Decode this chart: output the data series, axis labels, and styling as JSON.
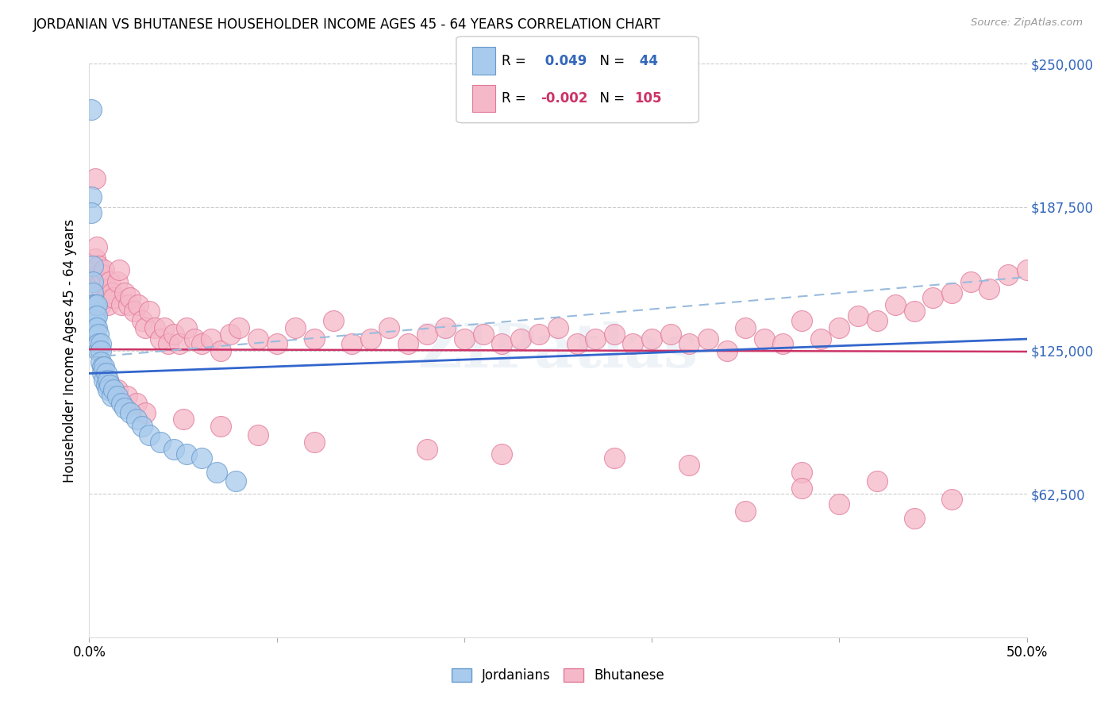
{
  "title": "JORDANIAN VS BHUTANESE HOUSEHOLDER INCOME AGES 45 - 64 YEARS CORRELATION CHART",
  "source": "Source: ZipAtlas.com",
  "ylabel": "Householder Income Ages 45 - 64 years",
  "xlim": [
    0.0,
    0.5
  ],
  "ylim": [
    0,
    250000
  ],
  "yticks": [
    0,
    62500,
    125000,
    187500,
    250000
  ],
  "ytick_labels": [
    "",
    "$62,500",
    "$125,000",
    "$187,500",
    "$250,000"
  ],
  "xticks": [
    0.0,
    0.1,
    0.2,
    0.3,
    0.4,
    0.5
  ],
  "xtick_labels": [
    "0.0%",
    "",
    "",
    "",
    "",
    "50.0%"
  ],
  "jordanian_R": 0.049,
  "jordanian_N": 44,
  "bhutanese_R": -0.002,
  "bhutanese_N": 105,
  "blue_fill": "#A8CAEC",
  "blue_edge": "#6699CC",
  "pink_fill": "#F5B8C8",
  "pink_edge": "#E07898",
  "trend_blue": "#3366CC",
  "trend_pink": "#CC3366",
  "trend_dashed_color": "#99BBDD",
  "watermark": "ZIPatlas",
  "legend_blue_R_color": "#3366BB",
  "legend_pink_R_color": "#CC3366",
  "jx": [
    0.001,
    0.001,
    0.001,
    0.002,
    0.002,
    0.002,
    0.002,
    0.003,
    0.003,
    0.003,
    0.003,
    0.004,
    0.004,
    0.004,
    0.005,
    0.005,
    0.005,
    0.006,
    0.006,
    0.006,
    0.007,
    0.007,
    0.008,
    0.008,
    0.009,
    0.009,
    0.01,
    0.01,
    0.011,
    0.012,
    0.013,
    0.015,
    0.017,
    0.019,
    0.022,
    0.025,
    0.028,
    0.032,
    0.038,
    0.045,
    0.052,
    0.06,
    0.068,
    0.078
  ],
  "jy": [
    230000,
    192000,
    185000,
    162000,
    155000,
    150000,
    145000,
    145000,
    140000,
    138000,
    135000,
    145000,
    140000,
    135000,
    132000,
    128000,
    125000,
    128000,
    125000,
    120000,
    118000,
    115000,
    118000,
    112000,
    115000,
    110000,
    112000,
    108000,
    110000,
    105000,
    108000,
    105000,
    102000,
    100000,
    98000,
    95000,
    92000,
    88000,
    85000,
    82000,
    80000,
    78000,
    72000,
    68000
  ],
  "bx": [
    0.001,
    0.002,
    0.003,
    0.003,
    0.004,
    0.004,
    0.005,
    0.005,
    0.006,
    0.006,
    0.007,
    0.007,
    0.008,
    0.009,
    0.01,
    0.01,
    0.011,
    0.012,
    0.013,
    0.015,
    0.016,
    0.017,
    0.019,
    0.021,
    0.022,
    0.024,
    0.026,
    0.028,
    0.03,
    0.032,
    0.035,
    0.038,
    0.04,
    0.042,
    0.045,
    0.048,
    0.052,
    0.056,
    0.06,
    0.065,
    0.07,
    0.075,
    0.08,
    0.09,
    0.1,
    0.11,
    0.12,
    0.13,
    0.14,
    0.15,
    0.16,
    0.17,
    0.18,
    0.19,
    0.2,
    0.21,
    0.22,
    0.23,
    0.24,
    0.25,
    0.26,
    0.27,
    0.28,
    0.29,
    0.3,
    0.31,
    0.32,
    0.33,
    0.34,
    0.35,
    0.36,
    0.37,
    0.38,
    0.39,
    0.4,
    0.41,
    0.42,
    0.43,
    0.44,
    0.45,
    0.46,
    0.47,
    0.48,
    0.49,
    0.5,
    0.01,
    0.015,
    0.02,
    0.025,
    0.03,
    0.05,
    0.07,
    0.09,
    0.12,
    0.18,
    0.22,
    0.28,
    0.32,
    0.38,
    0.42,
    0.35,
    0.4,
    0.44,
    0.46,
    0.38
  ],
  "by": [
    148000,
    160000,
    165000,
    200000,
    155000,
    170000,
    158000,
    162000,
    145000,
    155000,
    150000,
    158000,
    160000,
    148000,
    152000,
    145000,
    155000,
    150000,
    148000,
    155000,
    160000,
    145000,
    150000,
    145000,
    148000,
    142000,
    145000,
    138000,
    135000,
    142000,
    135000,
    130000,
    135000,
    128000,
    132000,
    128000,
    135000,
    130000,
    128000,
    130000,
    125000,
    132000,
    135000,
    130000,
    128000,
    135000,
    130000,
    138000,
    128000,
    130000,
    135000,
    128000,
    132000,
    135000,
    130000,
    132000,
    128000,
    130000,
    132000,
    135000,
    128000,
    130000,
    132000,
    128000,
    130000,
    132000,
    128000,
    130000,
    125000,
    135000,
    130000,
    128000,
    138000,
    130000,
    135000,
    140000,
    138000,
    145000,
    142000,
    148000,
    150000,
    155000,
    152000,
    158000,
    160000,
    112000,
    108000,
    105000,
    102000,
    98000,
    95000,
    92000,
    88000,
    85000,
    82000,
    80000,
    78000,
    75000,
    72000,
    68000,
    55000,
    58000,
    52000,
    60000,
    65000
  ]
}
